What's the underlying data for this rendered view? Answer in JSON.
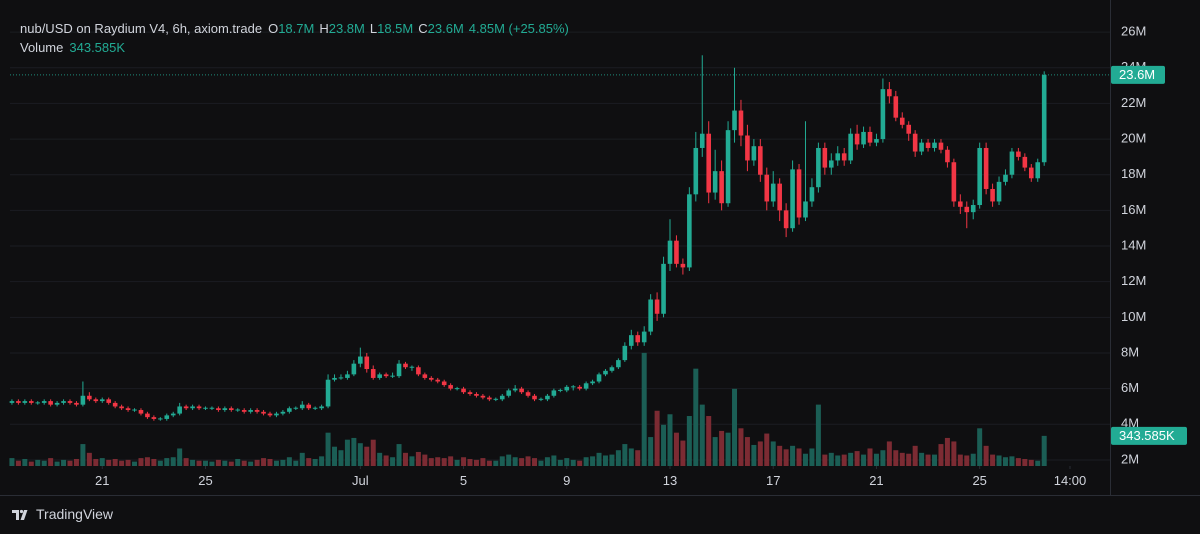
{
  "chart_data": {
    "type": "candlestick",
    "title": "nub/USD on Raydium V4, 6h, axiom.trade",
    "ohlc_legend": [
      {
        "key": "O",
        "value": "18.7M"
      },
      {
        "key": "H",
        "value": "23.8M"
      },
      {
        "key": "L",
        "value": "18.5M"
      },
      {
        "key": "C",
        "value": "23.6M"
      }
    ],
    "change_label": "4.85M (+25.85%)",
    "volume_title": "Volume",
    "last_volume_label": "343.585K",
    "last_price_label": "23.6M",
    "branding": "TradingView",
    "colors": {
      "up": "#22ab94",
      "down": "#f23645",
      "volume_up": "#1b5e55",
      "volume_down": "#7c2b33",
      "grid": "#1b1d22"
    },
    "grid": true,
    "xlim": [
      -0.3,
      170.2
    ],
    "xticks": [
      {
        "value": 14,
        "label": "21"
      },
      {
        "value": 30,
        "label": "25"
      },
      {
        "value": 54,
        "label": "Jul"
      },
      {
        "value": 70,
        "label": "5"
      },
      {
        "value": 86,
        "label": "9"
      },
      {
        "value": 102,
        "label": "13"
      },
      {
        "value": 118,
        "label": "17"
      },
      {
        "value": 134,
        "label": "21"
      },
      {
        "value": 150,
        "label": "25"
      },
      {
        "value": 164,
        "label": "14:00"
      }
    ],
    "ylim": [
      1660000,
      27240000
    ],
    "yticks": [
      {
        "value": 2000000.0,
        "label": "2M"
      },
      {
        "value": 4000000.0,
        "label": "4M"
      },
      {
        "value": 6000000.0,
        "label": "6M"
      },
      {
        "value": 8000000.0,
        "label": "8M"
      },
      {
        "value": 10000000.0,
        "label": "10M"
      },
      {
        "value": 12000000.0,
        "label": "12M"
      },
      {
        "value": 14000000.0,
        "label": "14M"
      },
      {
        "value": 16000000.0,
        "label": "16M"
      },
      {
        "value": 18000000.0,
        "label": "18M"
      },
      {
        "value": 20000000.0,
        "label": "20M"
      },
      {
        "value": 22000000.0,
        "label": "22M"
      },
      {
        "value": 24000000.0,
        "label": "24M"
      },
      {
        "value": 26000000.0,
        "label": "26M"
      }
    ],
    "y2lim": [
      0,
      5200000
    ],
    "open": [
      5200000.0,
      5300000.0,
      5200000.0,
      5300000.0,
      5200000.0,
      5200000.0,
      5300000.0,
      5100000.0,
      5200000.0,
      5300000.0,
      5200000.0,
      5100000.0,
      5600000.0,
      5400000.0,
      5300000.0,
      5400000.0,
      5200000.0,
      5000000.0,
      4900000.0,
      4800000.0,
      4800000.0,
      4600000.0,
      4400000.0,
      4300000.0,
      4300000.0,
      4500000.0,
      4600000.0,
      5000000.0,
      4900000.0,
      5000000.0,
      4900000.0,
      4900000.0,
      4900000.0,
      4800000.0,
      4900000.0,
      4800000.0,
      4800000.0,
      4700000.0,
      4800000.0,
      4700000.0,
      4600000.0,
      4500000.0,
      4600000.0,
      4700000.0,
      4900000.0,
      4900000.0,
      5100000.0,
      4900000.0,
      4900000.0,
      5000000.0,
      6500000.0,
      6600000.0,
      6600000.0,
      6800000.0,
      7400000.0,
      7800000.0,
      7100000.0,
      6600000.0,
      6800000.0,
      6700000.0,
      6700000.0,
      7400000.0,
      7200000.0,
      7200000.0,
      6800000.0,
      6600000.0,
      6500000.0,
      6400000.0,
      6200000.0,
      6000000.0,
      6000000.0,
      5800000.0,
      5700000.0,
      5600000.0,
      5500000.0,
      5400000.0,
      5400000.0,
      5600000.0,
      5900000.0,
      6000000.0,
      5800000.0,
      5600000.0,
      5400000.0,
      5400000.0,
      5600000.0,
      5900000.0,
      5900000.0,
      6100000.0,
      6100000.0,
      6000000.0,
      6300000.0,
      6400000.0,
      6800000.0,
      7000000.0,
      7200000.0,
      7600000.0,
      8400000.0,
      9000000.0,
      8600000.0,
      9200000.0,
      11000000.0,
      10200000.0,
      13000000.0,
      14300000.0,
      13000000.0,
      12800000.0,
      16900000.0,
      19500000.0,
      20300000.0,
      17000000.0,
      18200000.0,
      16400000.0,
      20500000.0,
      21600000.0,
      20200000.0,
      18800000.0,
      19600000.0,
      18000000.0,
      16500000.0,
      17500000.0,
      16000000.0,
      15000000.0,
      18300000.0,
      15600000.0,
      16500000.0,
      17300000.0,
      19500000.0,
      18400000.0,
      18800000.0,
      19200000.0,
      18800000.0,
      20300000.0,
      19700000.0,
      20400000.0,
      19800000.0,
      20000000.0,
      22800000.0,
      22400000.0,
      21200000.0,
      20800000.0,
      20300000.0,
      19300000.0,
      19800000.0,
      19500000.0,
      19800000.0,
      19400000.0,
      18700000.0,
      16500000.0,
      16200000.0,
      15900000.0,
      16300000.0,
      19500000.0,
      17200000.0,
      16500000.0,
      17600000.0,
      18000000.0,
      19300000.0,
      19000000.0,
      18400000.0,
      17800000.0,
      18700000.0
    ],
    "high": [
      5400000.0,
      5400000.0,
      5400000.0,
      5400000.0,
      5300000.0,
      5400000.0,
      5400000.0,
      5300000.0,
      5400000.0,
      5400000.0,
      5300000.0,
      6400000.0,
      5800000.0,
      5500000.0,
      5500000.0,
      5500000.0,
      5300000.0,
      5100000.0,
      5000000.0,
      4900000.0,
      4900000.0,
      4700000.0,
      4500000.0,
      4400000.0,
      4600000.0,
      4700000.0,
      5200000.0,
      5100000.0,
      5100000.0,
      5100000.0,
      5000000.0,
      5000000.0,
      5000000.0,
      5000000.0,
      5000000.0,
      4900000.0,
      4900000.0,
      4900000.0,
      4900000.0,
      4800000.0,
      4700000.0,
      4700000.0,
      4800000.0,
      5000000.0,
      5000000.0,
      5300000.0,
      5200000.0,
      5000000.0,
      5100000.0,
      6800000.0,
      6800000.0,
      6800000.0,
      7000000.0,
      7600000.0,
      8300000.0,
      8000000.0,
      7300000.0,
      6900000.0,
      6900000.0,
      6900000.0,
      7600000.0,
      7500000.0,
      7300000.0,
      7300000.0,
      6900000.0,
      6700000.0,
      6600000.0,
      6500000.0,
      6300000.0,
      6100000.0,
      6100000.0,
      5900000.0,
      5800000.0,
      5700000.0,
      5600000.0,
      5500000.0,
      5700000.0,
      6000000.0,
      6200000.0,
      6100000.0,
      5900000.0,
      5700000.0,
      5500000.0,
      5700000.0,
      6000000.0,
      6000000.0,
      6200000.0,
      6200000.0,
      6200000.0,
      6400000.0,
      6500000.0,
      6900000.0,
      7100000.0,
      7300000.0,
      7700000.0,
      8600000.0,
      9300000.0,
      9200000.0,
      9500000.0,
      11300000.0,
      11400000.0,
      13400000.0,
      15500000.0,
      14600000.0,
      13300000.0,
      17300000.0,
      20400000.0,
      24700000.0,
      21000000.0,
      19400000.0,
      18800000.0,
      21000000.0,
      24000000.0,
      22200000.0,
      20800000.0,
      20000000.0,
      20000000.0,
      18400000.0,
      18200000.0,
      17800000.0,
      16400000.0,
      18800000.0,
      18600000.0,
      21000000.0,
      17800000.0,
      19800000.0,
      19800000.0,
      19200000.0,
      19600000.0,
      19500000.0,
      20600000.0,
      20800000.0,
      20700000.0,
      20700000.0,
      20300000.0,
      23400000.0,
      23200000.0,
      22700000.0,
      21500000.0,
      21000000.0,
      20500000.0,
      20000000.0,
      20000000.0,
      20000000.0,
      20000000.0,
      19600000.0,
      18900000.0,
      16900000.0,
      16500000.0,
      16600000.0,
      19800000.0,
      19800000.0,
      17500000.0,
      17900000.0,
      18300000.0,
      19500000.0,
      19500000.0,
      19200000.0,
      18600000.0,
      18900000.0,
      23800000.0
    ],
    "low": [
      5100000.0,
      5100000.0,
      5100000.0,
      5100000.0,
      5100000.0,
      5100000.0,
      5000000.0,
      5000000.0,
      5100000.0,
      5100000.0,
      5000000.0,
      5000000.0,
      5300000.0,
      5200000.0,
      5200000.0,
      5100000.0,
      4900000.0,
      4800000.0,
      4700000.0,
      4700000.0,
      4500000.0,
      4300000.0,
      4200000.0,
      4200000.0,
      4200000.0,
      4400000.0,
      4500000.0,
      4800000.0,
      4800000.0,
      4800000.0,
      4800000.0,
      4800000.0,
      4700000.0,
      4700000.0,
      4700000.0,
      4700000.0,
      4600000.0,
      4600000.0,
      4600000.0,
      4500000.0,
      4400000.0,
      4400000.0,
      4500000.0,
      4600000.0,
      4800000.0,
      4800000.0,
      4800000.0,
      4800000.0,
      4800000.0,
      4900000.0,
      6400000.0,
      6500000.0,
      6500000.0,
      6700000.0,
      7200000.0,
      6900000.0,
      6500000.0,
      6500000.0,
      6600000.0,
      6600000.0,
      6600000.0,
      7100000.0,
      7000000.0,
      6700000.0,
      6500000.0,
      6400000.0,
      6300000.0,
      6100000.0,
      5900000.0,
      5900000.0,
      5700000.0,
      5600000.0,
      5500000.0,
      5400000.0,
      5300000.0,
      5300000.0,
      5300000.0,
      5500000.0,
      5800000.0,
      5700000.0,
      5500000.0,
      5300000.0,
      5300000.0,
      5300000.0,
      5500000.0,
      5800000.0,
      5800000.0,
      5900000.0,
      5900000.0,
      5900000.0,
      6200000.0,
      6300000.0,
      6700000.0,
      6900000.0,
      7100000.0,
      7500000.0,
      8200000.0,
      8400000.0,
      8400000.0,
      9000000.0,
      9800000.0,
      10000000.0,
      12600000.0,
      12800000.0,
      12400000.0,
      12600000.0,
      16500000.0,
      19000000.0,
      16400000.0,
      16600000.0,
      16000000.0,
      16200000.0,
      19800000.0,
      19600000.0,
      18200000.0,
      18500000.0,
      17600000.0,
      16000000.0,
      16200000.0,
      15400000.0,
      14500000.0,
      14800000.0,
      15200000.0,
      15400000.0,
      16200000.0,
      17000000.0,
      18000000.0,
      18000000.0,
      18500000.0,
      18500000.0,
      18600000.0,
      19400000.0,
      19500000.0,
      19600000.0,
      19600000.0,
      19800000.0,
      22000000.0,
      21000000.0,
      20600000.0,
      19900000.0,
      19000000.0,
      19100000.0,
      19300000.0,
      19300000.0,
      19200000.0,
      18400000.0,
      16200000.0,
      15800000.0,
      15000000.0,
      15500000.0,
      16100000.0,
      16900000.0,
      16200000.0,
      16300000.0,
      17400000.0,
      17800000.0,
      18800000.0,
      18200000.0,
      17600000.0,
      17600000.0,
      18500000.0
    ],
    "close": [
      5300000.0,
      5200000.0,
      5300000.0,
      5200000.0,
      5200000.0,
      5300000.0,
      5100000.0,
      5200000.0,
      5300000.0,
      5200000.0,
      5100000.0,
      5600000.0,
      5400000.0,
      5300000.0,
      5400000.0,
      5200000.0,
      5000000.0,
      4900000.0,
      4800000.0,
      4800000.0,
      4600000.0,
      4400000.0,
      4300000.0,
      4300000.0,
      4500000.0,
      4600000.0,
      5000000.0,
      4900000.0,
      5000000.0,
      4900000.0,
      4900000.0,
      4900000.0,
      4800000.0,
      4900000.0,
      4800000.0,
      4800000.0,
      4700000.0,
      4800000.0,
      4700000.0,
      4600000.0,
      4500000.0,
      4600000.0,
      4700000.0,
      4900000.0,
      4900000.0,
      5100000.0,
      4900000.0,
      4900000.0,
      5000000.0,
      6500000.0,
      6600000.0,
      6600000.0,
      6800000.0,
      7400000.0,
      7800000.0,
      7100000.0,
      6600000.0,
      6800000.0,
      6700000.0,
      6700000.0,
      7400000.0,
      7200000.0,
      7200000.0,
      6800000.0,
      6600000.0,
      6500000.0,
      6400000.0,
      6200000.0,
      6000000.0,
      6000000.0,
      5800000.0,
      5700000.0,
      5600000.0,
      5500000.0,
      5400000.0,
      5400000.0,
      5600000.0,
      5900000.0,
      6000000.0,
      5800000.0,
      5600000.0,
      5400000.0,
      5400000.0,
      5600000.0,
      5900000.0,
      5900000.0,
      6100000.0,
      6100000.0,
      6000000.0,
      6300000.0,
      6400000.0,
      6800000.0,
      7000000.0,
      7200000.0,
      7600000.0,
      8400000.0,
      9000000.0,
      8600000.0,
      9200000.0,
      11000000.0,
      10200000.0,
      13000000.0,
      14300000.0,
      13000000.0,
      12800000.0,
      16900000.0,
      19500000.0,
      20300000.0,
      17000000.0,
      18200000.0,
      16400000.0,
      20500000.0,
      21600000.0,
      20200000.0,
      18800000.0,
      19600000.0,
      18000000.0,
      16500000.0,
      17500000.0,
      16000000.0,
      15000000.0,
      18300000.0,
      15600000.0,
      16500000.0,
      17300000.0,
      19500000.0,
      18400000.0,
      18800000.0,
      19200000.0,
      18800000.0,
      20300000.0,
      19700000.0,
      20400000.0,
      19800000.0,
      20000000.0,
      22800000.0,
      22400000.0,
      21200000.0,
      20800000.0,
      20300000.0,
      19300000.0,
      19800000.0,
      19500000.0,
      19800000.0,
      19400000.0,
      18700000.0,
      16500000.0,
      16200000.0,
      15900000.0,
      16300000.0,
      19500000.0,
      17200000.0,
      16500000.0,
      17600000.0,
      18000000.0,
      19300000.0,
      19000000.0,
      18400000.0,
      17800000.0,
      18700000.0,
      23600000.0
    ],
    "volume": [
      90000.0,
      60000.0,
      80000.0,
      50000.0,
      70000.0,
      60000.0,
      90000.0,
      50000.0,
      70000.0,
      60000.0,
      80000.0,
      250000.0,
      150000.0,
      80000.0,
      90000.0,
      70000.0,
      80000.0,
      60000.0,
      70000.0,
      50000.0,
      90000.0,
      100000.0,
      80000.0,
      60000.0,
      90000.0,
      100000.0,
      200000.0,
      90000.0,
      70000.0,
      60000.0,
      60000.0,
      50000.0,
      70000.0,
      60000.0,
      50000.0,
      80000.0,
      60000.0,
      50000.0,
      70000.0,
      90000.0,
      80000.0,
      60000.0,
      70000.0,
      100000.0,
      60000.0,
      150000.0,
      90000.0,
      80000.0,
      110000.0,
      380000.0,
      220000.0,
      180000.0,
      300000.0,
      320000.0,
      260000.0,
      220000.0,
      300000.0,
      150000.0,
      120000.0,
      100000.0,
      250000.0,
      150000.0,
      110000.0,
      160000.0,
      130000.0,
      90000.0,
      100000.0,
      90000.0,
      110000.0,
      70000.0,
      100000.0,
      80000.0,
      70000.0,
      90000.0,
      60000.0,
      60000.0,
      110000.0,
      130000.0,
      100000.0,
      90000.0,
      110000.0,
      90000.0,
      60000.0,
      100000.0,
      120000.0,
      70000.0,
      90000.0,
      70000.0,
      60000.0,
      100000.0,
      110000.0,
      150000.0,
      120000.0,
      130000.0,
      180000.0,
      250000.0,
      200000.0,
      180000.0,
      1290000.0,
      330000.0,
      630000.0,
      470000.0,
      590000.0,
      380000.0,
      290000.0,
      570000.0,
      1110000.0,
      700000.0,
      570000.0,
      330000.0,
      400000.0,
      380000.0,
      880000.0,
      430000.0,
      330000.0,
      240000.0,
      280000.0,
      370000.0,
      280000.0,
      230000.0,
      190000.0,
      230000.0,
      200000.0,
      140000.0,
      200000.0,
      700000.0,
      130000.0,
      150000.0,
      120000.0,
      130000.0,
      150000.0,
      170000.0,
      130000.0,
      200000.0,
      140000.0,
      180000.0,
      280000.0,
      180000.0,
      150000.0,
      140000.0,
      230000.0,
      150000.0,
      130000.0,
      130000.0,
      250000.0,
      320000.0,
      280000.0,
      130000.0,
      120000.0,
      140000.0,
      430000.0,
      230000.0,
      130000.0,
      120000.0,
      100000.0,
      110000.0,
      90000.0,
      80000.0,
      70000.0,
      60000.0,
      343585
    ]
  }
}
